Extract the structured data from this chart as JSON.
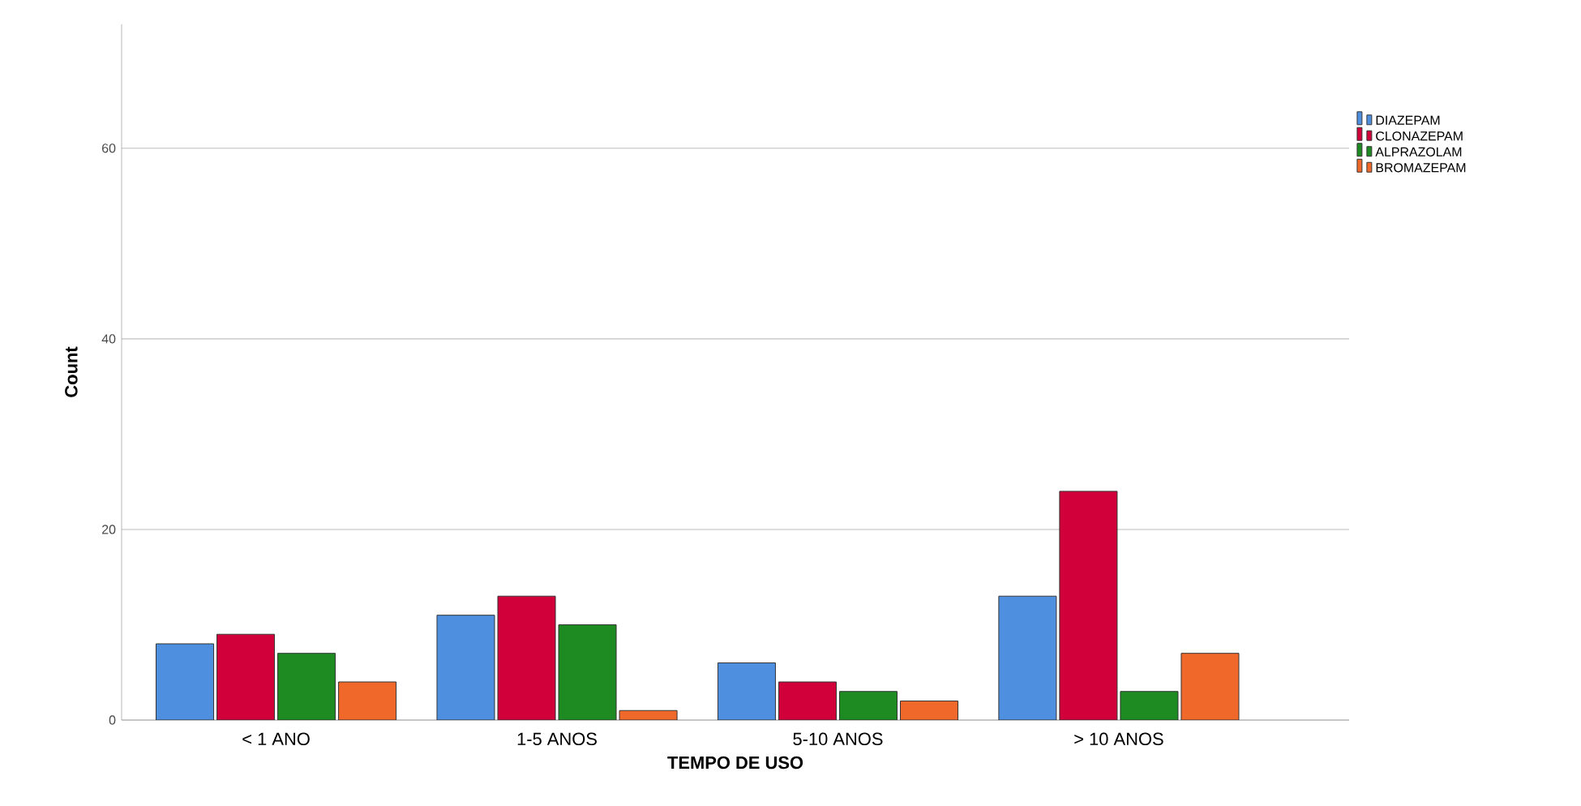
{
  "chart_data": {
    "type": "bar",
    "xlabel": "TEMPO DE USO",
    "ylabel": "Count",
    "categories": [
      "< 1 ANO",
      "1-5 ANOS",
      "5-10 ANOS",
      "> 10 ANOS"
    ],
    "series": [
      {
        "name": "DIAZEPAM",
        "color": "#4f8fe0",
        "values": [
          8,
          11,
          6,
          13
        ]
      },
      {
        "name": "CLONAZEPAM",
        "color": "#d2003a",
        "values": [
          9,
          13,
          4,
          24
        ]
      },
      {
        "name": "ALPRAZOLAM",
        "color": "#1e8a22",
        "values": [
          7,
          10,
          3,
          3
        ]
      },
      {
        "name": "BROMAZEPAM",
        "color": "#f0692a",
        "values": [
          4,
          1,
          2,
          7
        ]
      }
    ],
    "ylim": [
      0,
      73
    ],
    "yticks": [
      0,
      20,
      40,
      60
    ],
    "grid": "y",
    "legend": "top right"
  }
}
